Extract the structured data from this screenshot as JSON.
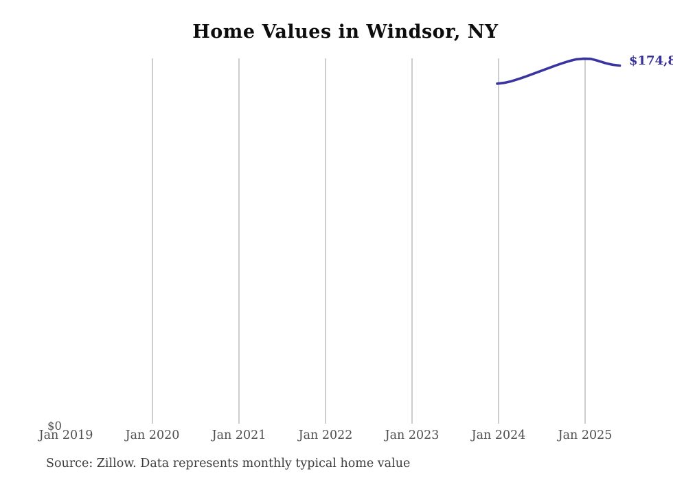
{
  "title": "Home Values in Windsor, NY",
  "y_axis": {
    "zero_label": "$0"
  },
  "x_axis": {
    "ticks": [
      "Jan 2019",
      "Jan 2020",
      "Jan 2021",
      "Jan 2022",
      "Jan 2023",
      "Jan 2024",
      "Jan 2025"
    ]
  },
  "line": {
    "color": "#3a34a0",
    "end_label": "$174,8"
  },
  "source_note": "Source: Zillow. Data represents monthly typical home value",
  "colors": {
    "line": "#3a34a0",
    "value_label": "#35309b",
    "gridline": "#cdcdcd",
    "tick_label": "#4f4f4f",
    "title": "#0d0d0d",
    "source": "#3d3d3d",
    "background": "#ffffff"
  },
  "chart_data": {
    "type": "line",
    "title": "Home Values in Windsor, NY",
    "xlabel": "",
    "ylabel": "",
    "x": [
      "2024-01",
      "2024-02",
      "2024-03",
      "2024-04",
      "2024-05",
      "2024-06",
      "2024-07",
      "2024-08",
      "2024-09",
      "2024-10",
      "2024-11",
      "2024-12",
      "2025-01",
      "2025-02",
      "2025-03",
      "2025-04",
      "2025-05",
      "2025-06"
    ],
    "series": [
      {
        "name": "Typical home value",
        "values": [
          166000,
          166400,
          167200,
          168300,
          169500,
          170800,
          172100,
          173400,
          174700,
          175900,
          177000,
          177900,
          178200,
          178100,
          177100,
          176000,
          175200,
          174800
        ]
      }
    ],
    "x_axis_ticks": [
      "Jan 2019",
      "Jan 2020",
      "Jan 2021",
      "Jan 2022",
      "Jan 2023",
      "Jan 2024",
      "Jan 2025"
    ],
    "ylim": [
      0,
      178200
    ],
    "grid": "vertical-only",
    "legend": "none",
    "last_point_label": "$174,8",
    "note": "values estimated from pixel positions; $0 baseline at axis bottom"
  }
}
